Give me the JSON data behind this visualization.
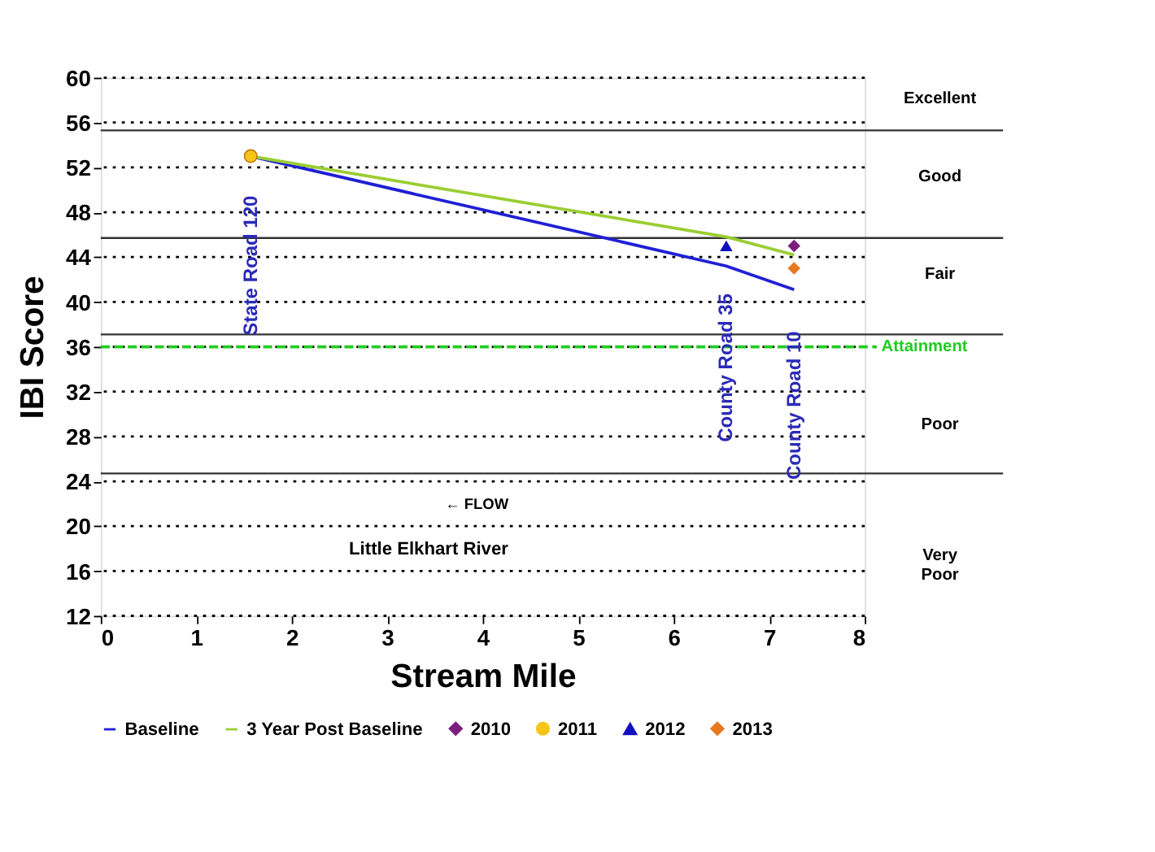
{
  "chart_data": {
    "type": "line",
    "xlabel": "Stream Mile",
    "ylabel": "IBI Score",
    "xlim": [
      0,
      8
    ],
    "xticks": [
      0,
      1,
      2,
      3,
      4,
      5,
      6,
      7,
      8
    ],
    "ylim": [
      12,
      60
    ],
    "yticks": [
      12,
      16,
      20,
      24,
      28,
      32,
      36,
      40,
      44,
      48,
      52,
      56,
      60
    ],
    "grid": "y",
    "legend": "bottom",
    "series": [
      {
        "name": "Baseline",
        "color": "#1f1fd6",
        "x": [
          1.57,
          6.55,
          7.26
        ],
        "values": [
          53,
          43.2,
          41.1
        ]
      },
      {
        "name": "3 Year Post Baseline",
        "color": "#9acd32",
        "x": [
          1.57,
          6.55,
          7.26
        ],
        "values": [
          53,
          45.8,
          44.2
        ]
      },
      {
        "name": "2010",
        "type": "scatter",
        "color": "#7b1f7e",
        "marker": "diamond",
        "x": [
          7.26
        ],
        "values": [
          45
        ]
      },
      {
        "name": "2011",
        "type": "scatter",
        "color": "#f5c518",
        "marker": "circle",
        "x": [
          1.57
        ],
        "values": [
          53
        ]
      },
      {
        "name": "2012",
        "type": "scatter",
        "color": "#1010c0",
        "marker": "triangle",
        "x": [
          6.55
        ],
        "values": [
          45
        ]
      },
      {
        "name": "2013",
        "type": "scatter",
        "color": "#e87722",
        "marker": "diamond",
        "x": [
          7.26
        ],
        "values": [
          43
        ]
      }
    ],
    "ref_lines": [
      {
        "axis": "y",
        "value": 55.3,
        "color": "#333333",
        "line_style": "solid"
      },
      {
        "axis": "y",
        "value": 45.7,
        "color": "#333333",
        "line_style": "solid"
      },
      {
        "axis": "y",
        "value": 37.1,
        "color": "#333333",
        "line_style": "solid"
      },
      {
        "axis": "y",
        "value": 36,
        "label": "Attainment",
        "color": "#22cc22",
        "line_style": "dashed"
      },
      {
        "axis": "y",
        "value": 24.7,
        "color": "#333333",
        "line_style": "solid"
      }
    ],
    "annotations": [
      "Excellent",
      "Good",
      "Fair",
      "Poor",
      "Very Poor",
      "State Road 120",
      "County Road 35",
      "County Road 10",
      "←  FLOW",
      "Little Elkhart River"
    ]
  }
}
